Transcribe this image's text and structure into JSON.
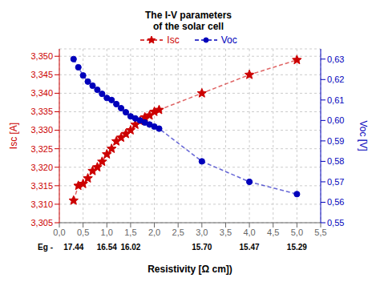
{
  "chart_data": {
    "type": "line",
    "title": "The I-V parameters\nof the solar cell",
    "xlabel": "Resistivity [Ω cm])",
    "ylabel": "Isc [A]",
    "y2label": "Voc [V]",
    "x": [
      0.3,
      0.4,
      0.5,
      0.6,
      0.7,
      0.8,
      0.9,
      1.0,
      1.1,
      1.2,
      1.3,
      1.4,
      1.5,
      1.6,
      1.7,
      1.8,
      1.9,
      2.0,
      2.1,
      3.0,
      4.0,
      5.0
    ],
    "series": [
      {
        "name": "Isc",
        "color": "#CC0000",
        "marker": "star",
        "line_style": "dashed",
        "values": [
          3.311,
          3.315,
          3.3155,
          3.317,
          3.319,
          3.32,
          3.3215,
          3.3235,
          3.325,
          3.327,
          3.328,
          3.329,
          3.33,
          3.3315,
          3.3325,
          3.3335,
          3.334,
          3.335,
          3.3355,
          3.34,
          3.345,
          3.349
        ]
      },
      {
        "name": "Voc",
        "color": "#0000BB",
        "marker": "circle",
        "line_style": "dashed",
        "axis": "y2",
        "values": [
          0.63,
          0.626,
          0.622,
          0.619,
          0.617,
          0.615,
          0.613,
          0.611,
          0.61,
          0.608,
          0.606,
          0.604,
          0.602,
          0.601,
          0.6,
          0.599,
          0.598,
          0.597,
          0.596,
          0.58,
          0.57,
          0.564
        ]
      }
    ],
    "xlim": [
      0.0,
      5.5
    ],
    "xticks": [
      {
        "value": 0.0,
        "label": "0,0"
      },
      {
        "value": 0.5,
        "label": "0,5"
      },
      {
        "value": 1.0,
        "label": "1,0"
      },
      {
        "value": 1.5,
        "label": "1,5"
      },
      {
        "value": 2.0,
        "label": "2,0"
      },
      {
        "value": 2.5,
        "label": "2,5"
      },
      {
        "value": 3.0,
        "label": "3,0"
      },
      {
        "value": 3.5,
        "label": "3,5"
      },
      {
        "value": 4.0,
        "label": "4,0"
      },
      {
        "value": 4.5,
        "label": "4,5"
      },
      {
        "value": 5.0,
        "label": "5,0"
      },
      {
        "value": 5.5,
        "label": "5,5"
      }
    ],
    "ylim": [
      3.305,
      3.352
    ],
    "yticks": [
      {
        "value": 3.305,
        "label": "3,305"
      },
      {
        "value": 3.31,
        "label": "3,310"
      },
      {
        "value": 3.315,
        "label": "3,315"
      },
      {
        "value": 3.32,
        "label": "3,320"
      },
      {
        "value": 3.325,
        "label": "3,325"
      },
      {
        "value": 3.33,
        "label": "3,330"
      },
      {
        "value": 3.335,
        "label": "3,335"
      },
      {
        "value": 3.34,
        "label": "3,340"
      },
      {
        "value": 3.345,
        "label": "3,345"
      },
      {
        "value": 3.35,
        "label": "3,350"
      }
    ],
    "y2lim": [
      0.55,
      0.635
    ],
    "y2ticks": [
      {
        "value": 0.55,
        "label": "0,55"
      },
      {
        "value": 0.56,
        "label": "0,56"
      },
      {
        "value": 0.57,
        "label": "0,57"
      },
      {
        "value": 0.58,
        "label": "0,58"
      },
      {
        "value": 0.59,
        "label": "0,59"
      },
      {
        "value": 0.6,
        "label": "0,60"
      },
      {
        "value": 0.61,
        "label": "0,61"
      },
      {
        "value": 0.62,
        "label": "0,62"
      },
      {
        "value": 0.63,
        "label": "0,63"
      }
    ],
    "grid": true,
    "legend": "top",
    "annotations": [
      {
        "text": "Eg -"
      },
      {
        "x": 0.3,
        "text": "17.44"
      },
      {
        "x": 1.0,
        "text": "16.54"
      },
      {
        "x": 1.5,
        "text": "16.02"
      },
      {
        "x": 3.0,
        "text": "15.70"
      },
      {
        "x": 4.0,
        "text": "15.47"
      },
      {
        "x": 5.0,
        "text": "15.29"
      }
    ]
  }
}
